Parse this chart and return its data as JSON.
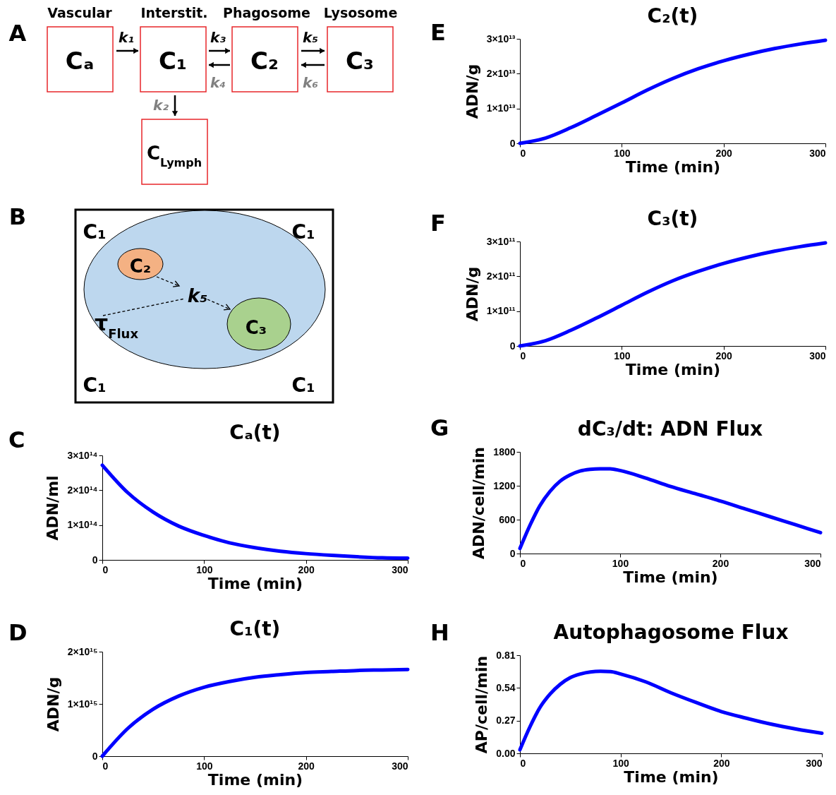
{
  "chart_data": [
    {
      "type": "other",
      "annotations": [
        "A",
        "Vascular",
        "Interstit.",
        "Phagosome",
        "Lysosome",
        "Cₐ",
        "C₁",
        "C₂",
        "C₃",
        "C$_{Lymph}$",
        "k₁",
        "k₃",
        "k₄",
        "k₅",
        "k₆",
        "k₂"
      ]
    },
    {
      "type": "other",
      "annotations": [
        "B",
        "C₁",
        "C₁",
        "C₁",
        "C₁",
        "C₂",
        "k₅",
        "τ$_{Flux}$",
        "C₃"
      ]
    },
    {
      "type": "line",
      "title": "Cₐ(t)",
      "xlabel": "Time (min)",
      "ylabel": "ADN/ml",
      "annotations": [
        "C"
      ],
      "xlim": [
        0,
        300
      ],
      "xticks": [
        0,
        100,
        200,
        300
      ],
      "ylim": [
        0,
        300000000000000.0
      ],
      "yticks": [
        0,
        {
          "value": 100000000000000.0,
          "label": "1×10¹⁴"
        },
        {
          "value": 200000000000000.0,
          "label": "2×10¹⁴"
        },
        {
          "value": 300000000000000.0,
          "label": "3×10¹⁴"
        }
      ],
      "x": [
        0,
        25,
        50,
        75,
        100,
        125,
        150,
        175,
        200,
        225,
        250,
        275,
        300
      ],
      "series": [
        {
          "color": "#0000ff",
          "values": [
            272000000000000.0,
            193000000000000.0,
            137000000000000.0,
            97000000000000.0,
            70000000000000.0,
            49000000000000.0,
            35000000000000.0,
            25000000000000.0,
            18000000000000.0,
            13000000000000.0,
            9000000000000.0,
            6000000000000.0,
            5000000000000.0
          ]
        }
      ]
    },
    {
      "type": "line",
      "title": "C₁(t)",
      "xlabel": "Time (min)",
      "ylabel": "ADN/g",
      "annotations": [
        "D"
      ],
      "xlim": [
        0,
        300
      ],
      "xticks": [
        0,
        100,
        200,
        300
      ],
      "ylim": [
        0,
        2000000000000000.0
      ],
      "yticks": [
        0,
        {
          "value": 1000000000000000.0,
          "label": "1×10¹⁵"
        },
        {
          "value": 2000000000000000.0,
          "label": "2×10¹⁵"
        }
      ],
      "x": [
        0,
        25,
        50,
        75,
        100,
        125,
        150,
        175,
        200,
        225,
        250,
        275,
        300
      ],
      "series": [
        {
          "color": "#0000ff",
          "values": [
            0,
            530000000000000.0,
            900000000000000.0,
            1150000000000000.0,
            1320000000000000.0,
            1430000000000000.0,
            1510000000000000.0,
            1560000000000000.0,
            1600000000000000.0,
            1620000000000000.0,
            1640000000000000.0,
            1650000000000000.0,
            1660000000000000.0
          ]
        }
      ]
    },
    {
      "type": "line",
      "title": "C₂(t)",
      "xlabel": "Time (min)",
      "ylabel": "ADN/g",
      "annotations": [
        "E"
      ],
      "xlim": [
        0,
        300
      ],
      "xticks": [
        0,
        100,
        200,
        300
      ],
      "ylim": [
        0,
        30000000000000.0
      ],
      "yticks": [
        0,
        {
          "value": 10000000000000.0,
          "label": "1×10¹³"
        },
        {
          "value": 20000000000000.0,
          "label": "2×10¹³"
        },
        {
          "value": 30000000000000.0,
          "label": "3×10¹³"
        }
      ],
      "x": [
        0,
        25,
        50,
        75,
        100,
        125,
        150,
        175,
        200,
        225,
        250,
        275,
        300
      ],
      "series": [
        {
          "color": "#0000ff",
          "values": [
            0,
            1500000000000.0,
            4500000000000.0,
            8000000000000.0,
            11600000000000.0,
            15300000000000.0,
            18600000000000.0,
            21400000000000.0,
            23700000000000.0,
            25600000000000.0,
            27200000000000.0,
            28500000000000.0,
            29600000000000.0
          ]
        }
      ]
    },
    {
      "type": "line",
      "title": "C₃(t)",
      "xlabel": "Time (min)",
      "ylabel": "ADN/g",
      "annotations": [
        "F"
      ],
      "xlim": [
        0,
        300
      ],
      "xticks": [
        0,
        100,
        200,
        300
      ],
      "ylim": [
        0,
        300000000000.0
      ],
      "yticks": [
        0,
        {
          "value": 100000000000.0,
          "label": "1×10¹¹"
        },
        {
          "value": 200000000000.0,
          "label": "2×10¹¹"
        },
        {
          "value": 300000000000.0,
          "label": "3×10¹¹"
        }
      ],
      "x": [
        0,
        25,
        50,
        75,
        100,
        125,
        150,
        175,
        200,
        225,
        250,
        275,
        300
      ],
      "series": [
        {
          "color": "#0000ff",
          "values": [
            0,
            15000000000.0,
            45000000000.0,
            80000000000.0,
            117000000000.0,
            154000000000.0,
            187000000000.0,
            214000000000.0,
            237000000000.0,
            256000000000.0,
            272000000000.0,
            285000000000.0,
            296000000000.0
          ]
        }
      ]
    },
    {
      "type": "line",
      "title": "dC₃/dt: ADN Flux",
      "xlabel": "Time (min)",
      "ylabel": "ADN/cell/min",
      "annotations": [
        "G"
      ],
      "xlim": [
        0,
        300
      ],
      "xticks": [
        0,
        100,
        200,
        300
      ],
      "ylim": [
        0,
        1800
      ],
      "yticks": [
        0,
        600,
        1200,
        1800
      ],
      "x": [
        0,
        10,
        20,
        30,
        40,
        50,
        60,
        70,
        80,
        90,
        100,
        125,
        150,
        175,
        200,
        225,
        250,
        275,
        300
      ],
      "series": [
        {
          "color": "#0000ff",
          "values": [
            90,
            500,
            850,
            1100,
            1280,
            1390,
            1460,
            1490,
            1500,
            1500,
            1470,
            1340,
            1190,
            1060,
            930,
            790,
            650,
            510,
            370
          ]
        }
      ]
    },
    {
      "type": "line",
      "title": "Autophagosome Flux",
      "xlabel": "Time (min)",
      "ylabel": "AP/cell/min",
      "annotations": [
        "H"
      ],
      "xlim": [
        0,
        300
      ],
      "xticks": [
        0,
        100,
        200,
        300
      ],
      "ylim": [
        0,
        0.81
      ],
      "yticks": [
        {
          "value": 0,
          "label": "0.00"
        },
        0.27,
        0.54,
        0.81
      ],
      "x": [
        0,
        10,
        20,
        30,
        40,
        50,
        60,
        70,
        80,
        90,
        100,
        125,
        150,
        175,
        200,
        225,
        250,
        275,
        300
      ],
      "series": [
        {
          "color": "#0000ff",
          "values": [
            0.03,
            0.22,
            0.38,
            0.49,
            0.57,
            0.625,
            0.655,
            0.672,
            0.677,
            0.675,
            0.655,
            0.59,
            0.5,
            0.42,
            0.345,
            0.29,
            0.24,
            0.2,
            0.166
          ]
        }
      ]
    }
  ]
}
